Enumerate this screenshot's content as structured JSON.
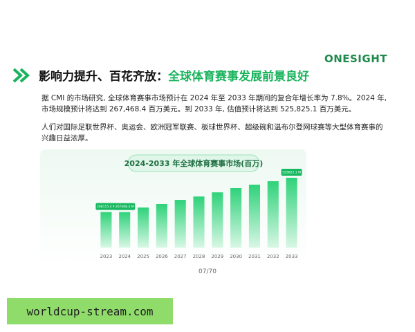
{
  "header": {
    "logo": "ONESIGHT",
    "title_lead": "影响力提升、百花齐放：",
    "title_accent": "全球体育赛事发展前景良好"
  },
  "paragraphs": [
    "据 CMI 的市场研究, 全球体育赛事市场预计在 2024 年至 2033 年期间的复合年增长率为 7.8%。2024 年, 市场规模预计将达到 267,468.4 百万美元。到 2033 年, 估值预计将达到 525,825.1 百万美元。",
    "人们对国际足联世界杯、奥运会、欧洲冠军联赛、板球世界杯、超级碗和温布尔登网球赛等大型体育赛事的兴趣日益浓厚。"
  ],
  "chart_data": {
    "type": "bar",
    "title": "2024-2033 年全球体育赛事市场(百万)",
    "categories": [
      "2023",
      "2024",
      "2025",
      "2026",
      "2027",
      "2028",
      "2029",
      "2030",
      "2031",
      "2032",
      "2033"
    ],
    "values": [
      268115.4,
      267468.4,
      302000,
      328000,
      359000,
      385000,
      416000,
      448000,
      474000,
      500000,
      525825.1
    ],
    "value_labels": [
      "268115.4 M",
      "267468.4 M",
      null,
      null,
      null,
      null,
      null,
      null,
      null,
      null,
      "525825.1 M"
    ],
    "color": "#2fd27a"
  },
  "page_number": "07/70",
  "watermark": "worldcup-stream.com"
}
